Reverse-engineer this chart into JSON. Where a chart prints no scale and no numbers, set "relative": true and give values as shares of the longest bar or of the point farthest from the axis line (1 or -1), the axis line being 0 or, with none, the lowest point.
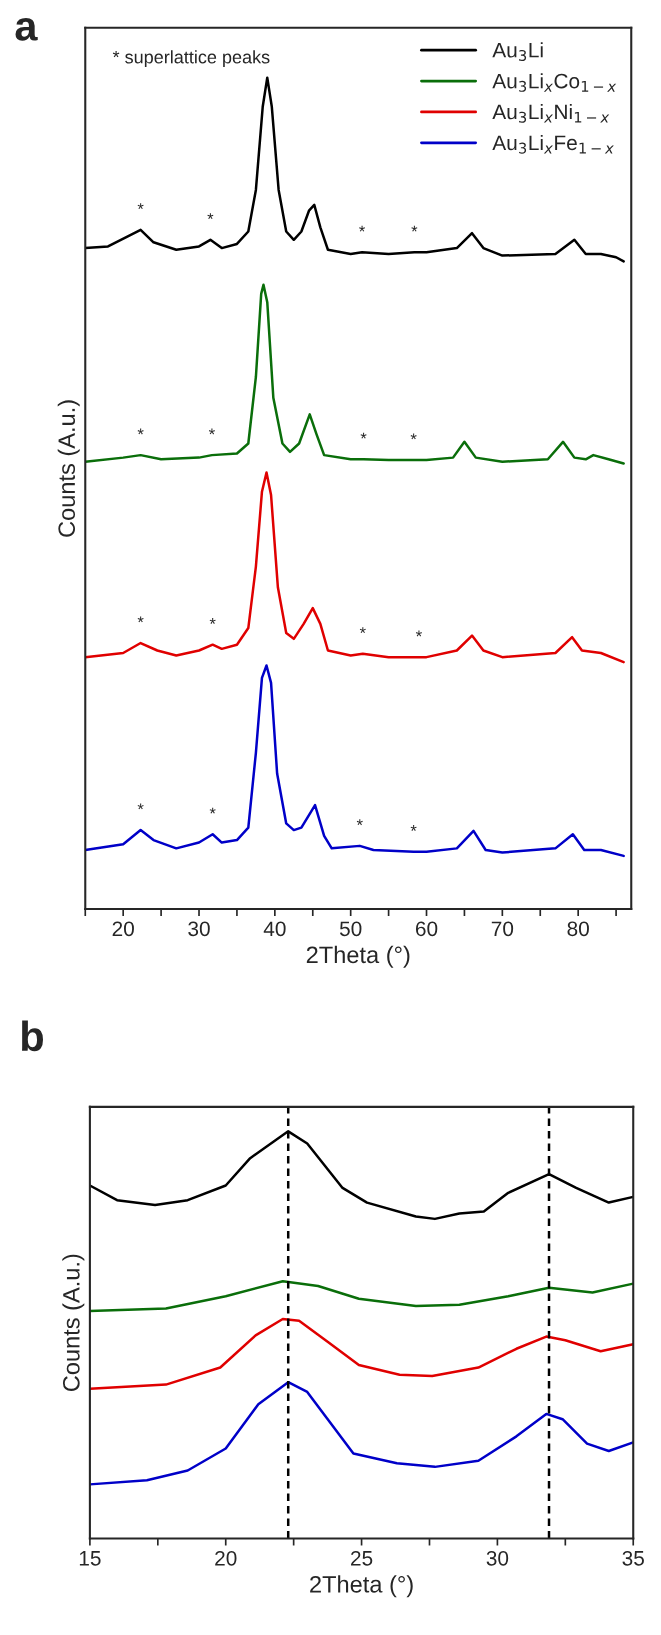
{
  "chart_data": [
    {
      "type": "line",
      "title": "a",
      "xlabel": "2Theta (°)",
      "ylabel": "Counts (A.u.)",
      "relative": true,
      "legend": "top right",
      "grid": false,
      "xlim": [
        15,
        87
      ],
      "xticks": [
        {
          "value": 15,
          "label": null
        },
        20,
        {
          "value": 25,
          "label": null
        },
        30,
        {
          "value": 35,
          "label": null
        },
        40,
        {
          "value": 45,
          "label": null
        },
        50,
        {
          "value": 55,
          "label": null
        },
        60,
        {
          "value": 65,
          "label": null
        },
        70,
        {
          "value": 75,
          "label": null
        },
        80,
        {
          "value": 85,
          "label": null
        }
      ],
      "annotations": [
        "* superlattice peaks",
        {
          "text": "*",
          "x": 22.3,
          "y": 0.817
        },
        {
          "text": "*",
          "x": 31.5,
          "y": 0.805
        },
        {
          "text": "*",
          "x": 51.5,
          "y": 0.79
        },
        {
          "text": "*",
          "x": 58.4,
          "y": 0.79
        },
        {
          "text": "*",
          "x": 22.3,
          "y": 0.546
        },
        {
          "text": "*",
          "x": 31.7,
          "y": 0.546
        },
        {
          "text": "*",
          "x": 51.7,
          "y": 0.541
        },
        {
          "text": "*",
          "x": 58.3,
          "y": 0.54
        },
        {
          "text": "*",
          "x": 22.3,
          "y": 0.32
        },
        {
          "text": "*",
          "x": 31.8,
          "y": 0.318
        },
        {
          "text": "*",
          "x": 51.6,
          "y": 0.307
        },
        {
          "text": "*",
          "x": 59,
          "y": 0.303
        },
        {
          "text": "*",
          "x": 22.3,
          "y": 0.095
        },
        {
          "text": "*",
          "x": 31.8,
          "y": 0.09
        },
        {
          "text": "*",
          "x": 51.2,
          "y": 0.076
        },
        {
          "text": "*",
          "x": 58.3,
          "y": 0.069
        }
      ],
      "series": [
        {
          "name": "Au$_{3}$Li",
          "color": "#000000",
          "x": [
            15,
            18,
            21,
            22.3,
            24,
            27,
            30,
            31.5,
            33,
            35,
            36.5,
            37.5,
            38.4,
            39,
            39.6,
            40.5,
            41.5,
            42.5,
            43.5,
            44.5,
            45.2,
            46,
            47,
            50,
            51.5,
            55,
            58.4,
            60,
            64,
            66,
            67.5,
            70,
            77,
            79.5,
            81,
            83,
            85,
            86
          ],
          "values": [
            0.795,
            0.797,
            0.811,
            0.817,
            0.802,
            0.793,
            0.797,
            0.805,
            0.795,
            0.8,
            0.815,
            0.865,
            0.965,
            1.0,
            0.965,
            0.865,
            0.815,
            0.805,
            0.815,
            0.84,
            0.847,
            0.82,
            0.793,
            0.788,
            0.79,
            0.788,
            0.79,
            0.79,
            0.795,
            0.813,
            0.795,
            0.786,
            0.788,
            0.805,
            0.788,
            0.788,
            0.784,
            0.779
          ]
        },
        {
          "name": "Au$_{3}$Li$_{x}$Co$_{1−x}$",
          "color": "#0a6e0a",
          "x": [
            15,
            20,
            22.3,
            25,
            30,
            31.7,
            35,
            36.5,
            37.5,
            38.2,
            38.5,
            39,
            39.8,
            41,
            42,
            43.2,
            44.6,
            45.5,
            46.5,
            50,
            51.7,
            55,
            58.3,
            60,
            63.5,
            65,
            66.5,
            70,
            76,
            78,
            79.5,
            81,
            82,
            84,
            86
          ],
          "values": [
            0.538,
            0.543,
            0.546,
            0.541,
            0.543,
            0.546,
            0.548,
            0.56,
            0.64,
            0.74,
            0.751,
            0.73,
            0.615,
            0.56,
            0.55,
            0.56,
            0.595,
            0.571,
            0.546,
            0.541,
            0.541,
            0.54,
            0.54,
            0.54,
            0.543,
            0.562,
            0.543,
            0.538,
            0.541,
            0.562,
            0.543,
            0.541,
            0.546,
            0.541,
            0.536
          ]
        },
        {
          "name": "Au$_{3}$Li$_{x}$Ni$_{1−x}$",
          "color": "#e00000",
          "x": [
            15,
            20,
            22.3,
            24.5,
            27,
            30,
            31.8,
            33,
            35,
            36.5,
            37.5,
            38.3,
            38.9,
            39.5,
            40.4,
            41.5,
            42.5,
            43.8,
            45,
            46,
            47,
            50,
            51.6,
            55,
            59,
            60,
            64,
            66,
            67.5,
            70,
            77,
            79.2,
            80.5,
            83,
            86
          ],
          "values": [
            0.303,
            0.308,
            0.32,
            0.311,
            0.305,
            0.311,
            0.318,
            0.313,
            0.318,
            0.338,
            0.412,
            0.502,
            0.525,
            0.498,
            0.387,
            0.332,
            0.325,
            0.343,
            0.362,
            0.343,
            0.311,
            0.305,
            0.307,
            0.303,
            0.303,
            0.303,
            0.311,
            0.329,
            0.311,
            0.303,
            0.308,
            0.327,
            0.311,
            0.308,
            0.297
          ]
        },
        {
          "name": "Au$_{3}$Li$_{x}$Fe$_{1−x}$",
          "color": "#0000c8",
          "x": [
            15,
            20,
            22.3,
            24,
            27,
            30,
            31.8,
            33,
            35,
            36.5,
            37.5,
            38.3,
            38.9,
            39.5,
            40.3,
            41.5,
            42.5,
            43.5,
            45.3,
            46.5,
            47.5,
            51.2,
            53,
            58.3,
            60,
            64,
            66.2,
            67.8,
            70,
            77,
            79.3,
            80.8,
            83,
            86
          ],
          "values": [
            0.071,
            0.078,
            0.095,
            0.083,
            0.073,
            0.08,
            0.09,
            0.08,
            0.083,
            0.098,
            0.188,
            0.278,
            0.293,
            0.272,
            0.163,
            0.103,
            0.095,
            0.098,
            0.125,
            0.088,
            0.073,
            0.076,
            0.071,
            0.069,
            0.069,
            0.073,
            0.094,
            0.071,
            0.068,
            0.073,
            0.09,
            0.071,
            0.071,
            0.064
          ]
        }
      ]
    },
    {
      "type": "line",
      "title": "b",
      "xlabel": "2Theta (°)",
      "ylabel": "Counts (A.u.)",
      "relative": true,
      "grid": false,
      "xlim": [
        15,
        35
      ],
      "xticks": [
        15,
        {
          "value": 17.5,
          "label": null
        },
        20,
        {
          "value": 22.5,
          "label": null
        },
        25,
        {
          "value": 27.5,
          "label": null
        },
        30,
        {
          "value": 32.5,
          "label": null
        },
        35
      ],
      "ref_lines": [
        {
          "axis": "x",
          "value": 22.3,
          "color": "#000000",
          "line_style": "dashed"
        },
        {
          "axis": "x",
          "value": 31.9,
          "color": "#000000",
          "line_style": "dashed"
        }
      ],
      "series": [
        {
          "color": "#000000",
          "x": [
            15,
            16.0,
            17.4,
            18.6,
            20.0,
            20.9,
            22.3,
            23.0,
            24.3,
            25.2,
            27.0,
            27.7,
            28.6,
            29.5,
            30.4,
            31.9,
            32.9,
            34.1,
            35
          ],
          "values": [
            0.867,
            0.831,
            0.819,
            0.831,
            0.867,
            0.934,
            1.0,
            0.97,
            0.861,
            0.825,
            0.791,
            0.785,
            0.798,
            0.803,
            0.849,
            0.895,
            0.861,
            0.825,
            0.839
          ]
        },
        {
          "color": "#0a6e0a",
          "x": [
            15,
            17.8,
            20.0,
            22.1,
            23.4,
            24.9,
            27.0,
            28.6,
            30.4,
            31.9,
            33.5,
            35
          ],
          "values": [
            0.559,
            0.565,
            0.595,
            0.632,
            0.62,
            0.589,
            0.571,
            0.574,
            0.595,
            0.616,
            0.604,
            0.626
          ]
        },
        {
          "color": "#e00000",
          "x": [
            15,
            17.8,
            19.8,
            21.1,
            22.1,
            22.7,
            23.8,
            24.9,
            26.4,
            27.6,
            29.3,
            30.7,
            31.8,
            32.5,
            33.8,
            35
          ],
          "values": [
            0.368,
            0.378,
            0.42,
            0.499,
            0.539,
            0.535,
            0.481,
            0.426,
            0.402,
            0.399,
            0.42,
            0.466,
            0.496,
            0.487,
            0.46,
            0.477
          ]
        },
        {
          "color": "#0000c8",
          "x": [
            15,
            17.1,
            18.6,
            20.0,
            21.2,
            22.3,
            23.0,
            24.7,
            26.3,
            27.7,
            29.3,
            30.7,
            31.8,
            32.4,
            33.3,
            34.1,
            35
          ],
          "values": [
            0.133,
            0.143,
            0.167,
            0.221,
            0.33,
            0.384,
            0.36,
            0.209,
            0.185,
            0.176,
            0.191,
            0.251,
            0.306,
            0.293,
            0.233,
            0.215,
            0.236
          ]
        }
      ]
    }
  ]
}
